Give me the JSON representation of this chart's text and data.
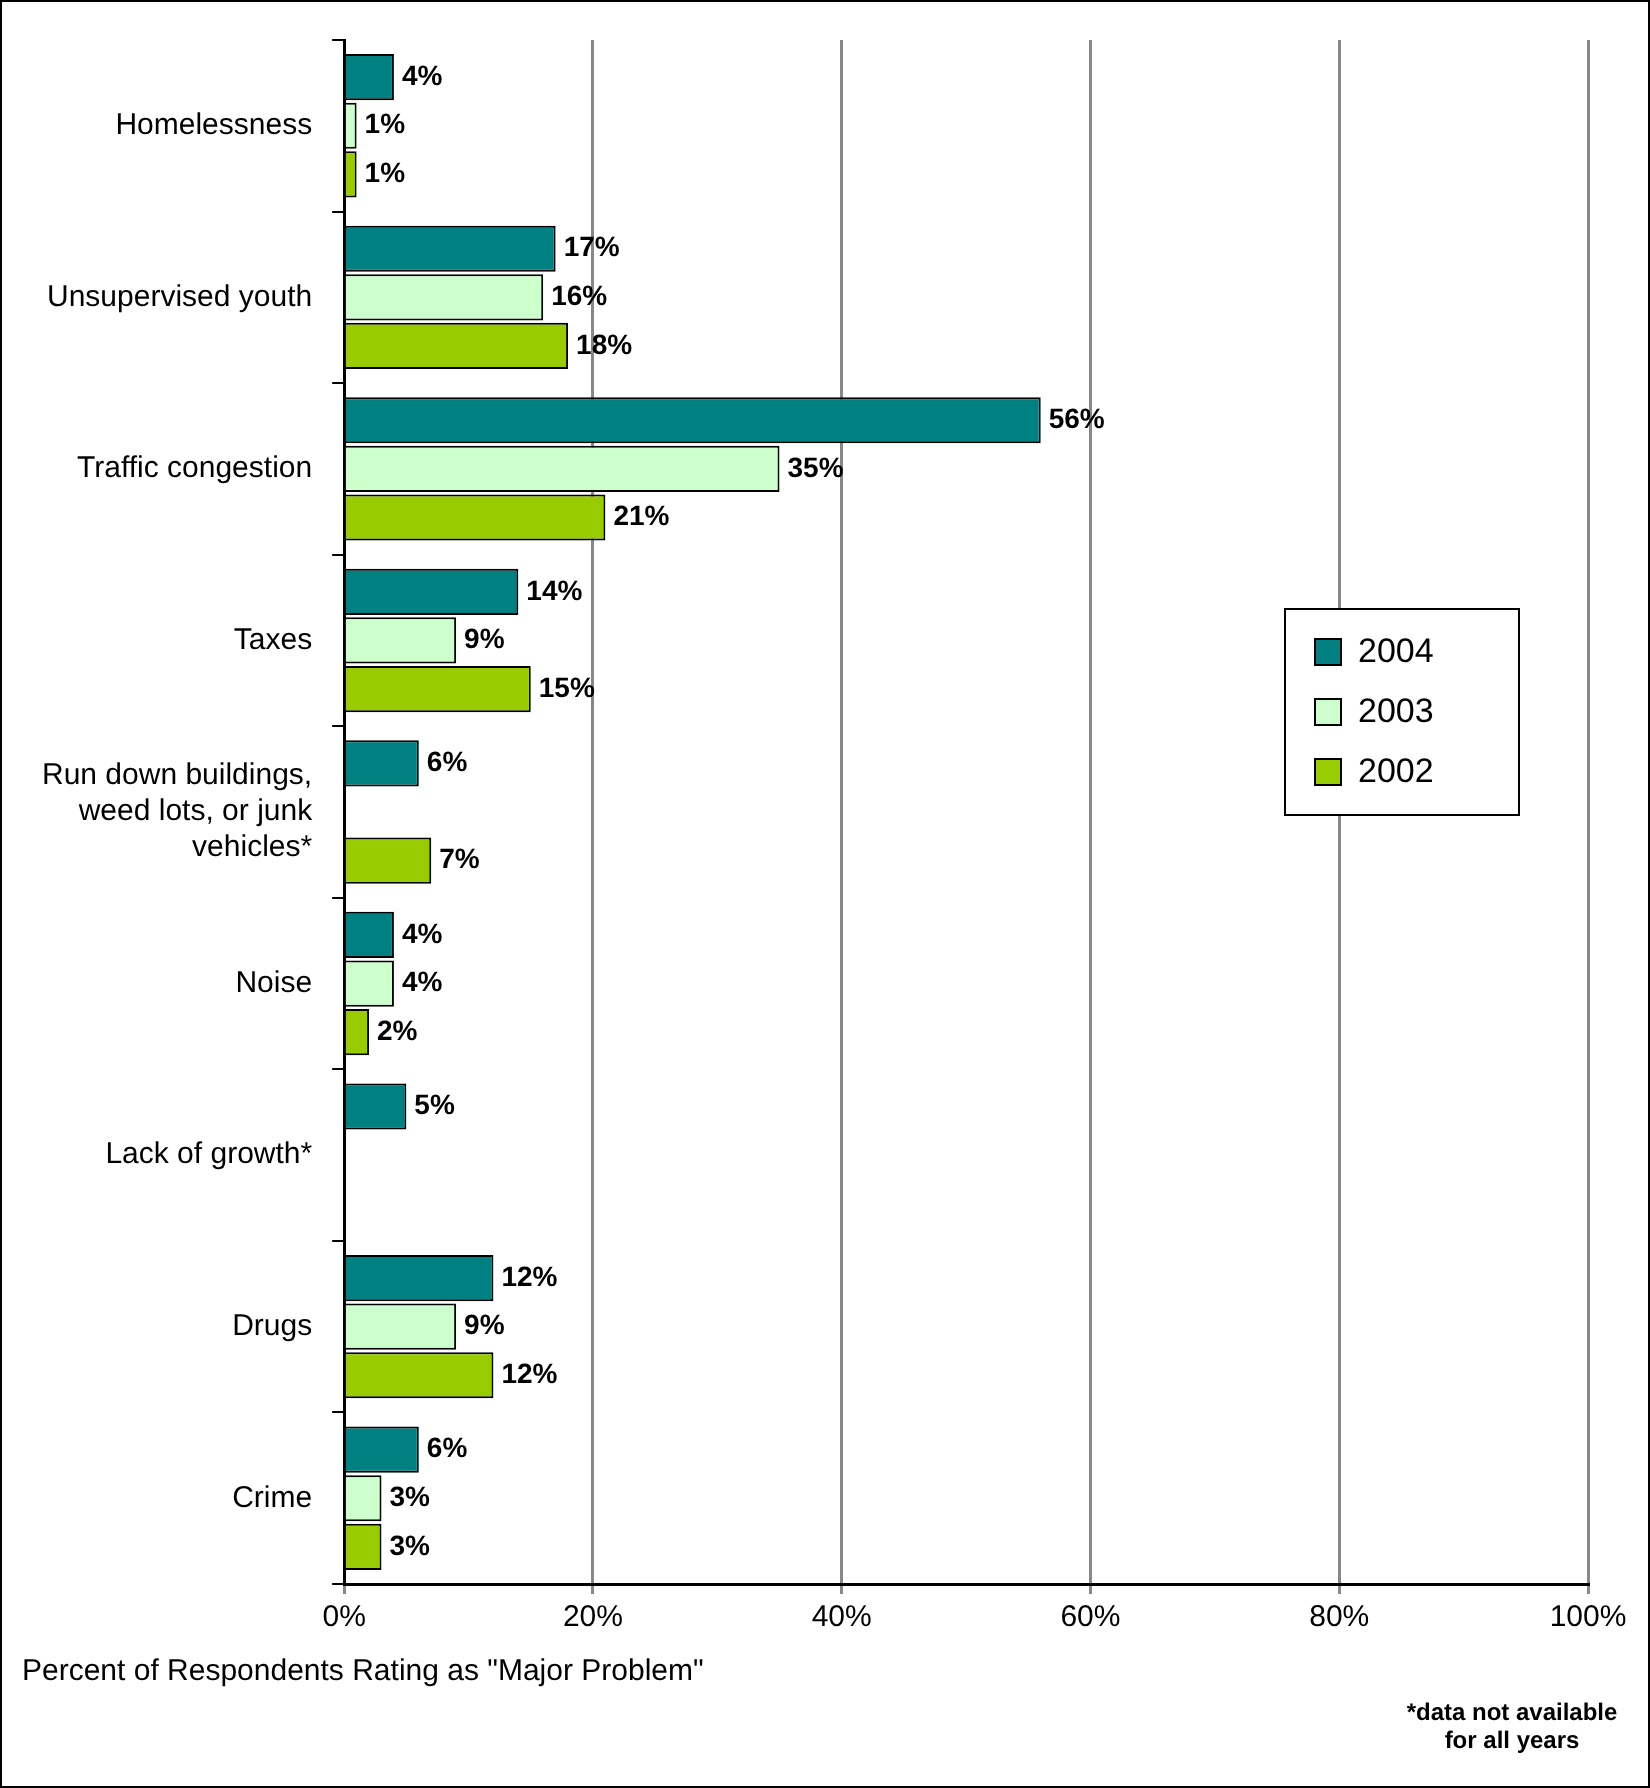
{
  "chart_data": {
    "type": "bar",
    "orientation": "horizontal",
    "xlabel": "Percent of Respondents Rating as \"Major Problem\"",
    "categories": [
      "Homelessness",
      "Unsupervised youth",
      "Traffic congestion",
      "Taxes",
      "Run down buildings, weed lots, or junk vehicles*",
      "Noise",
      "Lack of growth*",
      "Drugs",
      "Crime"
    ],
    "series": [
      {
        "name": "2004",
        "color": "#008080",
        "values": [
          4,
          17,
          56,
          14,
          6,
          4,
          5,
          12,
          6
        ],
        "value_labels": [
          "4%",
          "17%",
          "56%",
          "14%",
          "6%",
          "4%",
          "5%",
          "12%",
          "6%"
        ]
      },
      {
        "name": "2003",
        "color": "#ccffcc",
        "values": [
          1,
          16,
          35,
          9,
          null,
          4,
          null,
          9,
          3
        ],
        "value_labels": [
          "1%",
          "16%",
          "35%",
          "9%",
          null,
          "4%",
          null,
          "9%",
          "3%"
        ]
      },
      {
        "name": "2002",
        "color": "#99cc00",
        "values": [
          1,
          18,
          21,
          15,
          7,
          2,
          null,
          12,
          3
        ],
        "value_labels": [
          "1%",
          "18%",
          "21%",
          "15%",
          "7%",
          "2%",
          null,
          "12%",
          "3%"
        ]
      }
    ],
    "xlim": [
      0,
      100
    ],
    "xticks": [
      {
        "value": 0,
        "label": "0%"
      },
      {
        "value": 20,
        "label": "20%"
      },
      {
        "value": 40,
        "label": "40%"
      },
      {
        "value": 60,
        "label": "60%"
      },
      {
        "value": 80,
        "label": "80%"
      },
      {
        "value": 100,
        "label": "100%"
      }
    ],
    "grid": "x",
    "legend": "right",
    "annotations": [
      "*data not available for all years"
    ]
  }
}
